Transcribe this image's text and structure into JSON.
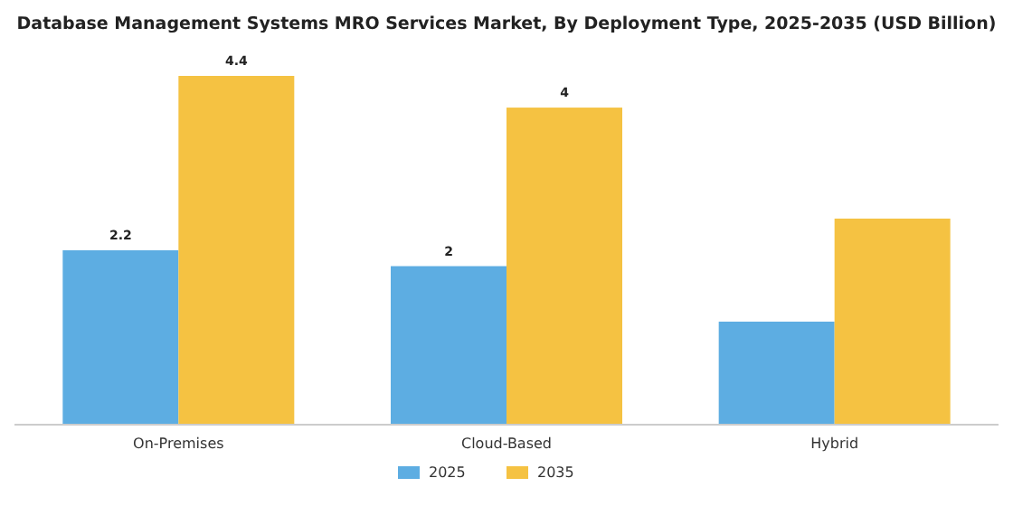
{
  "chart_data": {
    "type": "bar",
    "title": "Database Management Systems MRO Services Market, By Deployment Type, 2025-2035 (USD Billion)",
    "categories": [
      "On-Premises",
      "Cloud-Based",
      "Hybrid"
    ],
    "series": [
      {
        "name": "2025",
        "color": "#5dade2",
        "values": [
          2.2,
          2,
          1.3
        ],
        "value_labels": [
          "2.2",
          "2",
          null
        ]
      },
      {
        "name": "2035",
        "color": "#f5c242",
        "values": [
          4.4,
          4,
          2.6
        ],
        "value_labels": [
          "4.4",
          "4",
          null
        ]
      }
    ],
    "tick_labels": "x",
    "legend": "bottom"
  }
}
